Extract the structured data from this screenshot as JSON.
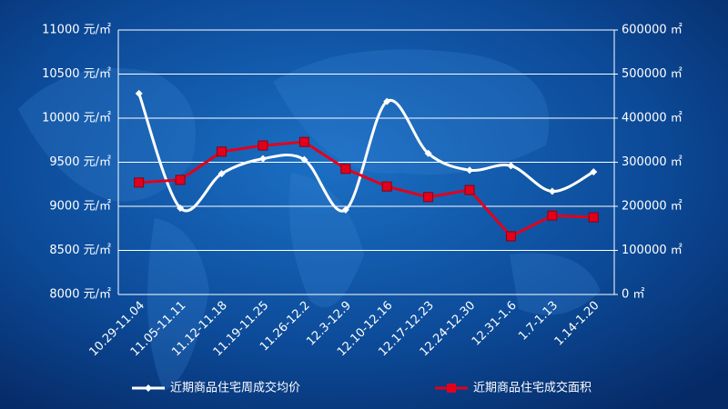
{
  "chart_data": {
    "type": "line",
    "categories": [
      "10.29-11.04",
      "11.05-11.11",
      "11.12-11.18",
      "11.19-11.25",
      "11.26-12.2",
      "12.3-12.9",
      "12.10-12.16",
      "12.17-12.23",
      "12.24-12.30",
      "12.31-1.6",
      "1.7-1.13",
      "1.14-1.20"
    ],
    "series": [
      {
        "name": "近期商品住宅周成交均价",
        "color": "#ffffff",
        "values": [
          10280,
          8980,
          9370,
          9540,
          9530,
          8960,
          10190,
          9600,
          9410,
          9460,
          9170,
          9390
        ]
      },
      {
        "name": "近期商品住宅成交面积",
        "color": "#e3001b",
        "axis": "y2",
        "values": [
          254000,
          260000,
          324000,
          338000,
          346000,
          285000,
          245000,
          221000,
          237000,
          132000,
          179000,
          175000
        ]
      }
    ],
    "ylim": [
      8000,
      11000
    ],
    "yticks": [
      {
        "value": 8000,
        "label": "8000 元/㎡"
      },
      {
        "value": 8500,
        "label": "8500 元/㎡"
      },
      {
        "value": 9000,
        "label": "9000 元/㎡"
      },
      {
        "value": 9500,
        "label": "9500 元/㎡"
      },
      {
        "value": 10000,
        "label": "10000 元/㎡"
      },
      {
        "value": 10500,
        "label": "10500 元/㎡"
      },
      {
        "value": 11000,
        "label": "11000 元/㎡"
      }
    ],
    "y2lim": [
      0,
      600000
    ],
    "y2ticks": [
      {
        "value": 0,
        "label": "0 ㎡"
      },
      {
        "value": 100000,
        "label": "100000 ㎡"
      },
      {
        "value": 200000,
        "label": "200000 ㎡"
      },
      {
        "value": 300000,
        "label": "300000 ㎡"
      },
      {
        "value": 400000,
        "label": "400000 ㎡"
      },
      {
        "value": 500000,
        "label": "500000 ㎡"
      },
      {
        "value": 600000,
        "label": "600000 ㎡"
      }
    ],
    "grid": true
  }
}
